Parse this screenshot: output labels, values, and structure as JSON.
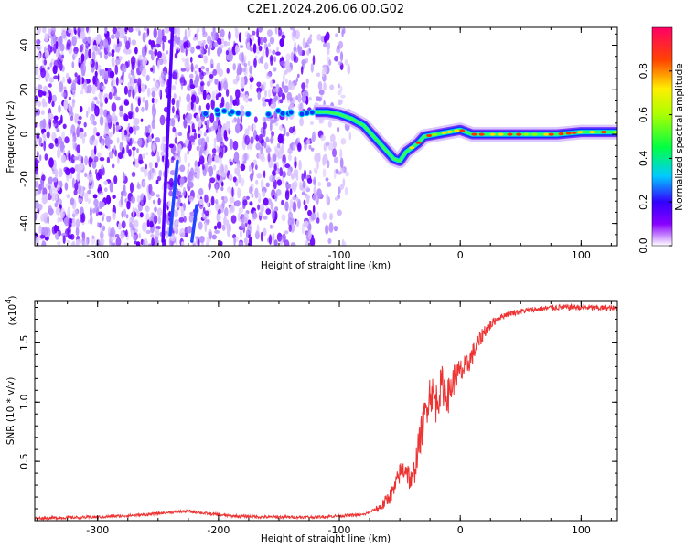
{
  "chart_data": [
    {
      "type": "heatmap",
      "title": "C2E1.2024.206.06.00.G02",
      "xlabel": "Height of straight line (km)",
      "ylabel": "Frequency (Hz)",
      "xlim": [
        -352,
        130
      ],
      "ylim": [
        -50,
        48
      ],
      "x_ticks": [
        -300,
        -200,
        -100,
        0,
        100
      ],
      "x_tick_labels": [
        "-300",
        "-200",
        "-100",
        "0",
        "100"
      ],
      "y_ticks": [
        -40,
        -20,
        0,
        20,
        40
      ],
      "y_tick_labels": [
        "-40",
        "-20",
        "0",
        "20",
        "40"
      ],
      "colorbar": {
        "label": "Normalized spectral amplitude",
        "range": [
          0,
          1
        ],
        "ticks": [
          0.0,
          0.2,
          0.4,
          0.6,
          0.8
        ],
        "tick_labels": [
          "0.0",
          "0.2",
          "0.4",
          "0.6",
          "0.8"
        ]
      },
      "ridge": {
        "x": [
          -120,
          -110,
          -100,
          -90,
          -80,
          -70,
          -60,
          -55,
          -50,
          -45,
          -40,
          -35,
          -30,
          -20,
          -10,
          0,
          10,
          20,
          40,
          60,
          80,
          100,
          130
        ],
        "y": [
          10,
          10,
          9,
          7,
          4,
          -2,
          -8,
          -11,
          -12,
          -8,
          -6,
          -4,
          -1,
          0,
          1,
          2,
          0,
          0,
          0,
          0,
          0,
          1,
          1
        ]
      },
      "streaks": [
        {
          "x": [
            -246,
            -238
          ],
          "y": [
            -48,
            48
          ]
        },
        {
          "x": [
            -240,
            -234
          ],
          "y": [
            -45,
            -12
          ]
        },
        {
          "x": [
            -222,
            -218
          ],
          "y": [
            -48,
            -32
          ]
        }
      ]
    },
    {
      "type": "line",
      "title": "",
      "xlabel": "Height of straight line (km)",
      "ylabel": "SNR (10 * v/v)",
      "y_multiplier": "(x10",
      "y_multiplier_exp": "4",
      "y_multiplier_close": ")",
      "xlim": [
        -352,
        130
      ],
      "ylim": [
        0,
        1.85
      ],
      "x_ticks": [
        -300,
        -200,
        -100,
        0,
        100
      ],
      "x_tick_labels": [
        "-300",
        "-200",
        "-100",
        "0",
        "100"
      ],
      "y_ticks": [
        0.5,
        1.0,
        1.5
      ],
      "y_tick_labels": [
        "0.5",
        "1.0",
        "1.5"
      ],
      "series": [
        {
          "color": "#ee3333",
          "x": [
            -352,
            -300,
            -260,
            -240,
            -225,
            -210,
            -190,
            -160,
            -120,
            -80,
            -65,
            -55,
            -50,
            -45,
            -40,
            -35,
            -30,
            -25,
            -20,
            -15,
            -10,
            -5,
            0,
            5,
            10,
            15,
            20,
            30,
            40,
            60,
            80,
            100,
            130
          ],
          "y": [
            0.02,
            0.03,
            0.05,
            0.07,
            0.08,
            0.06,
            0.04,
            0.03,
            0.03,
            0.05,
            0.12,
            0.25,
            0.4,
            0.45,
            0.3,
            0.6,
            0.85,
            1.1,
            1.0,
            1.15,
            1.05,
            1.2,
            1.25,
            1.3,
            1.4,
            1.5,
            1.6,
            1.7,
            1.75,
            1.78,
            1.8,
            1.8,
            1.79
          ]
        }
      ]
    }
  ]
}
